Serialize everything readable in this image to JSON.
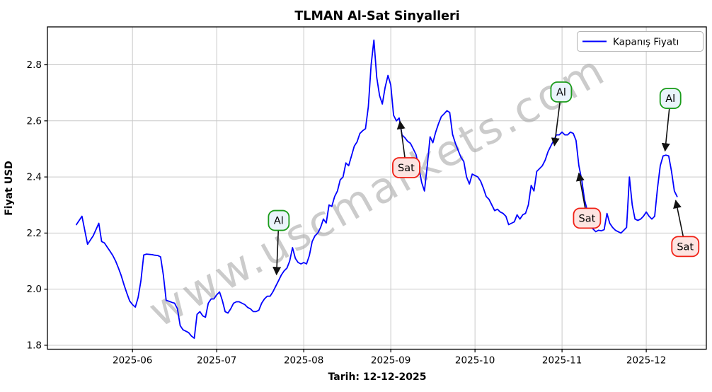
{
  "figure": {
    "title": "TLMAN Al-Sat Sinyalleri",
    "x_axis_label": "Tarih: 12-12-2025",
    "y_axis_label": "Fiyat USD",
    "watermark": "www.uscmarkets.com"
  },
  "colors": {
    "price_line": "#0000ff",
    "buy_border": "#1a9c1a",
    "buy_fill": "#eaf4fb",
    "sell_border": "#f02015",
    "sell_fill": "#fde4e1",
    "watermark": "#a0a0a0",
    "grid": "#c9c9c9",
    "axis": "#000000",
    "arrow": "#111111"
  },
  "chart_data": {
    "type": "line",
    "title": "TLMAN Al-Sat Sinyalleri",
    "xlabel": "Tarih: 12-12-2025",
    "ylabel": "Fiyat USD",
    "grid": true,
    "legend_position": "upper right",
    "x_start_date": "2025-05-12",
    "x_end_date": "2025-12-12",
    "x_unit": "days_since_2025-05-12",
    "xlim_days": [
      -10.3,
      224.4
    ],
    "ylim": [
      1.786,
      2.935
    ],
    "y_ticks": [
      1.8,
      2.0,
      2.2,
      2.4,
      2.6,
      2.8
    ],
    "x_ticks": [
      {
        "label": "2025-06",
        "day": 20
      },
      {
        "label": "2025-07",
        "day": 50
      },
      {
        "label": "2025-08",
        "day": 81
      },
      {
        "label": "2025-09",
        "day": 112
      },
      {
        "label": "2025-10",
        "day": 142
      },
      {
        "label": "2025-11",
        "day": 173
      },
      {
        "label": "2025-12",
        "day": 203
      }
    ],
    "series": [
      {
        "name": "Kapanış Fiyatı",
        "color": "#0000ff",
        "points": [
          [
            0,
            2.23
          ],
          [
            2,
            2.26
          ],
          [
            4,
            2.16
          ],
          [
            6,
            2.19
          ],
          [
            8,
            2.235
          ],
          [
            9,
            2.17
          ],
          [
            10,
            2.165
          ],
          [
            11,
            2.15
          ],
          [
            12,
            2.135
          ],
          [
            13,
            2.12
          ],
          [
            14,
            2.1
          ],
          [
            15,
            2.075
          ],
          [
            16,
            2.048
          ],
          [
            17,
            2.015
          ],
          [
            18,
            1.985
          ],
          [
            19,
            1.958
          ],
          [
            20,
            1.945
          ],
          [
            21,
            1.936
          ],
          [
            22,
            1.97
          ],
          [
            23,
            2.03
          ],
          [
            24,
            2.122
          ],
          [
            25,
            2.125
          ],
          [
            26,
            2.124
          ],
          [
            27,
            2.123
          ],
          [
            28,
            2.121
          ],
          [
            29,
            2.12
          ],
          [
            30,
            2.115
          ],
          [
            31,
            2.05
          ],
          [
            32,
            1.96
          ],
          [
            33,
            1.957
          ],
          [
            34,
            1.953
          ],
          [
            35,
            1.95
          ],
          [
            36,
            1.93
          ],
          [
            37,
            1.87
          ],
          [
            38,
            1.855
          ],
          [
            39,
            1.85
          ],
          [
            40,
            1.845
          ],
          [
            41,
            1.833
          ],
          [
            42,
            1.825
          ],
          [
            43,
            1.91
          ],
          [
            44,
            1.92
          ],
          [
            45,
            1.905
          ],
          [
            46,
            1.9
          ],
          [
            47,
            1.95
          ],
          [
            48,
            1.965
          ],
          [
            49,
            1.965
          ],
          [
            50,
            1.98
          ],
          [
            51,
            1.99
          ],
          [
            52,
            1.96
          ],
          [
            53,
            1.92
          ],
          [
            54,
            1.915
          ],
          [
            55,
            1.93
          ],
          [
            56,
            1.95
          ],
          [
            57,
            1.955
          ],
          [
            58,
            1.955
          ],
          [
            59,
            1.95
          ],
          [
            60,
            1.945
          ],
          [
            61,
            1.935
          ],
          [
            62,
            1.93
          ],
          [
            63,
            1.92
          ],
          [
            64,
            1.92
          ],
          [
            65,
            1.925
          ],
          [
            66,
            1.95
          ],
          [
            67,
            1.965
          ],
          [
            68,
            1.975
          ],
          [
            69,
            1.975
          ],
          [
            70,
            1.99
          ],
          [
            71,
            2.01
          ],
          [
            72,
            2.03
          ],
          [
            73,
            2.05
          ],
          [
            74,
            2.065
          ],
          [
            75,
            2.075
          ],
          [
            76,
            2.1
          ],
          [
            77,
            2.148
          ],
          [
            78,
            2.11
          ],
          [
            79,
            2.095
          ],
          [
            80,
            2.09
          ],
          [
            81,
            2.095
          ],
          [
            82,
            2.09
          ],
          [
            83,
            2.12
          ],
          [
            84,
            2.17
          ],
          [
            85,
            2.19
          ],
          [
            86,
            2.2
          ],
          [
            87,
            2.22
          ],
          [
            88,
            2.25
          ],
          [
            89,
            2.236
          ],
          [
            90,
            2.3
          ],
          [
            91,
            2.295
          ],
          [
            92,
            2.33
          ],
          [
            93,
            2.35
          ],
          [
            94,
            2.39
          ],
          [
            95,
            2.4
          ],
          [
            96,
            2.45
          ],
          [
            97,
            2.44
          ],
          [
            98,
            2.475
          ],
          [
            99,
            2.51
          ],
          [
            100,
            2.525
          ],
          [
            101,
            2.555
          ],
          [
            102,
            2.565
          ],
          [
            103,
            2.572
          ],
          [
            104,
            2.65
          ],
          [
            105,
            2.8
          ],
          [
            106,
            2.888
          ],
          [
            107,
            2.755
          ],
          [
            108,
            2.69
          ],
          [
            109,
            2.66
          ],
          [
            110,
            2.72
          ],
          [
            111,
            2.762
          ],
          [
            112,
            2.728
          ],
          [
            113,
            2.62
          ],
          [
            114,
            2.6
          ],
          [
            115,
            2.61
          ],
          [
            116,
            2.55
          ],
          [
            117,
            2.54
          ],
          [
            118,
            2.527
          ],
          [
            119,
            2.52
          ],
          [
            120,
            2.5
          ],
          [
            121,
            2.48
          ],
          [
            122,
            2.435
          ],
          [
            123,
            2.38
          ],
          [
            124,
            2.35
          ],
          [
            125,
            2.44
          ],
          [
            126,
            2.543
          ],
          [
            127,
            2.522
          ],
          [
            128,
            2.56
          ],
          [
            129,
            2.59
          ],
          [
            130,
            2.615
          ],
          [
            131,
            2.625
          ],
          [
            132,
            2.636
          ],
          [
            133,
            2.63
          ],
          [
            134,
            2.552
          ],
          [
            135,
            2.52
          ],
          [
            136,
            2.495
          ],
          [
            137,
            2.47
          ],
          [
            138,
            2.455
          ],
          [
            139,
            2.4
          ],
          [
            140,
            2.375
          ],
          [
            141,
            2.41
          ],
          [
            142,
            2.405
          ],
          [
            143,
            2.4
          ],
          [
            144,
            2.385
          ],
          [
            145,
            2.36
          ],
          [
            146,
            2.33
          ],
          [
            147,
            2.32
          ],
          [
            148,
            2.3
          ],
          [
            149,
            2.28
          ],
          [
            150,
            2.285
          ],
          [
            151,
            2.275
          ],
          [
            152,
            2.27
          ],
          [
            153,
            2.26
          ],
          [
            154,
            2.23
          ],
          [
            155,
            2.235
          ],
          [
            156,
            2.24
          ],
          [
            157,
            2.265
          ],
          [
            158,
            2.25
          ],
          [
            159,
            2.265
          ],
          [
            160,
            2.27
          ],
          [
            161,
            2.3
          ],
          [
            162,
            2.37
          ],
          [
            163,
            2.35
          ],
          [
            164,
            2.42
          ],
          [
            165,
            2.43
          ],
          [
            166,
            2.44
          ],
          [
            167,
            2.46
          ],
          [
            168,
            2.49
          ],
          [
            169,
            2.51
          ],
          [
            170,
            2.53
          ],
          [
            171,
            2.55
          ],
          [
            172,
            2.55
          ],
          [
            173,
            2.56
          ],
          [
            174,
            2.55
          ],
          [
            175,
            2.55
          ],
          [
            176,
            2.56
          ],
          [
            177,
            2.555
          ],
          [
            178,
            2.53
          ],
          [
            179,
            2.44
          ],
          [
            180,
            2.39
          ],
          [
            181,
            2.32
          ],
          [
            182,
            2.28
          ],
          [
            183,
            2.24
          ],
          [
            184,
            2.215
          ],
          [
            185,
            2.205
          ],
          [
            186,
            2.21
          ],
          [
            187,
            2.208
          ],
          [
            188,
            2.212
          ],
          [
            189,
            2.27
          ],
          [
            190,
            2.235
          ],
          [
            191,
            2.22
          ],
          [
            192,
            2.21
          ],
          [
            193,
            2.205
          ],
          [
            194,
            2.2
          ],
          [
            195,
            2.21
          ],
          [
            196,
            2.22
          ],
          [
            197,
            2.4
          ],
          [
            198,
            2.3
          ],
          [
            199,
            2.25
          ],
          [
            200,
            2.245
          ],
          [
            201,
            2.25
          ],
          [
            202,
            2.26
          ],
          [
            203,
            2.275
          ],
          [
            204,
            2.26
          ],
          [
            205,
            2.25
          ],
          [
            206,
            2.26
          ],
          [
            207,
            2.36
          ],
          [
            208,
            2.44
          ],
          [
            209,
            2.475
          ],
          [
            210,
            2.478
          ],
          [
            211,
            2.475
          ],
          [
            212,
            2.42
          ],
          [
            213,
            2.35
          ],
          [
            214,
            2.33
          ]
        ]
      }
    ],
    "signals": [
      {
        "label": "Al",
        "kind": "buy",
        "box_day": 72.1,
        "box_value": 2.245,
        "tip_day": 71.3,
        "tip_value": 2.052
      },
      {
        "label": "Sat",
        "kind": "sell",
        "box_day": 117.5,
        "box_value": 2.433,
        "tip_day": 115.3,
        "tip_value": 2.598
      },
      {
        "label": "Al",
        "kind": "buy",
        "box_day": 172.7,
        "box_value": 2.703,
        "tip_day": 170.3,
        "tip_value": 2.512
      },
      {
        "label": "Sat",
        "kind": "sell",
        "box_day": 181.9,
        "box_value": 2.253,
        "tip_day": 179.0,
        "tip_value": 2.413
      },
      {
        "label": "Al",
        "kind": "buy",
        "box_day": 211.6,
        "box_value": 2.68,
        "tip_day": 209.7,
        "tip_value": 2.493
      },
      {
        "label": "Sat",
        "kind": "sell",
        "box_day": 216.9,
        "box_value": 2.152,
        "tip_day": 213.5,
        "tip_value": 2.316
      }
    ]
  }
}
